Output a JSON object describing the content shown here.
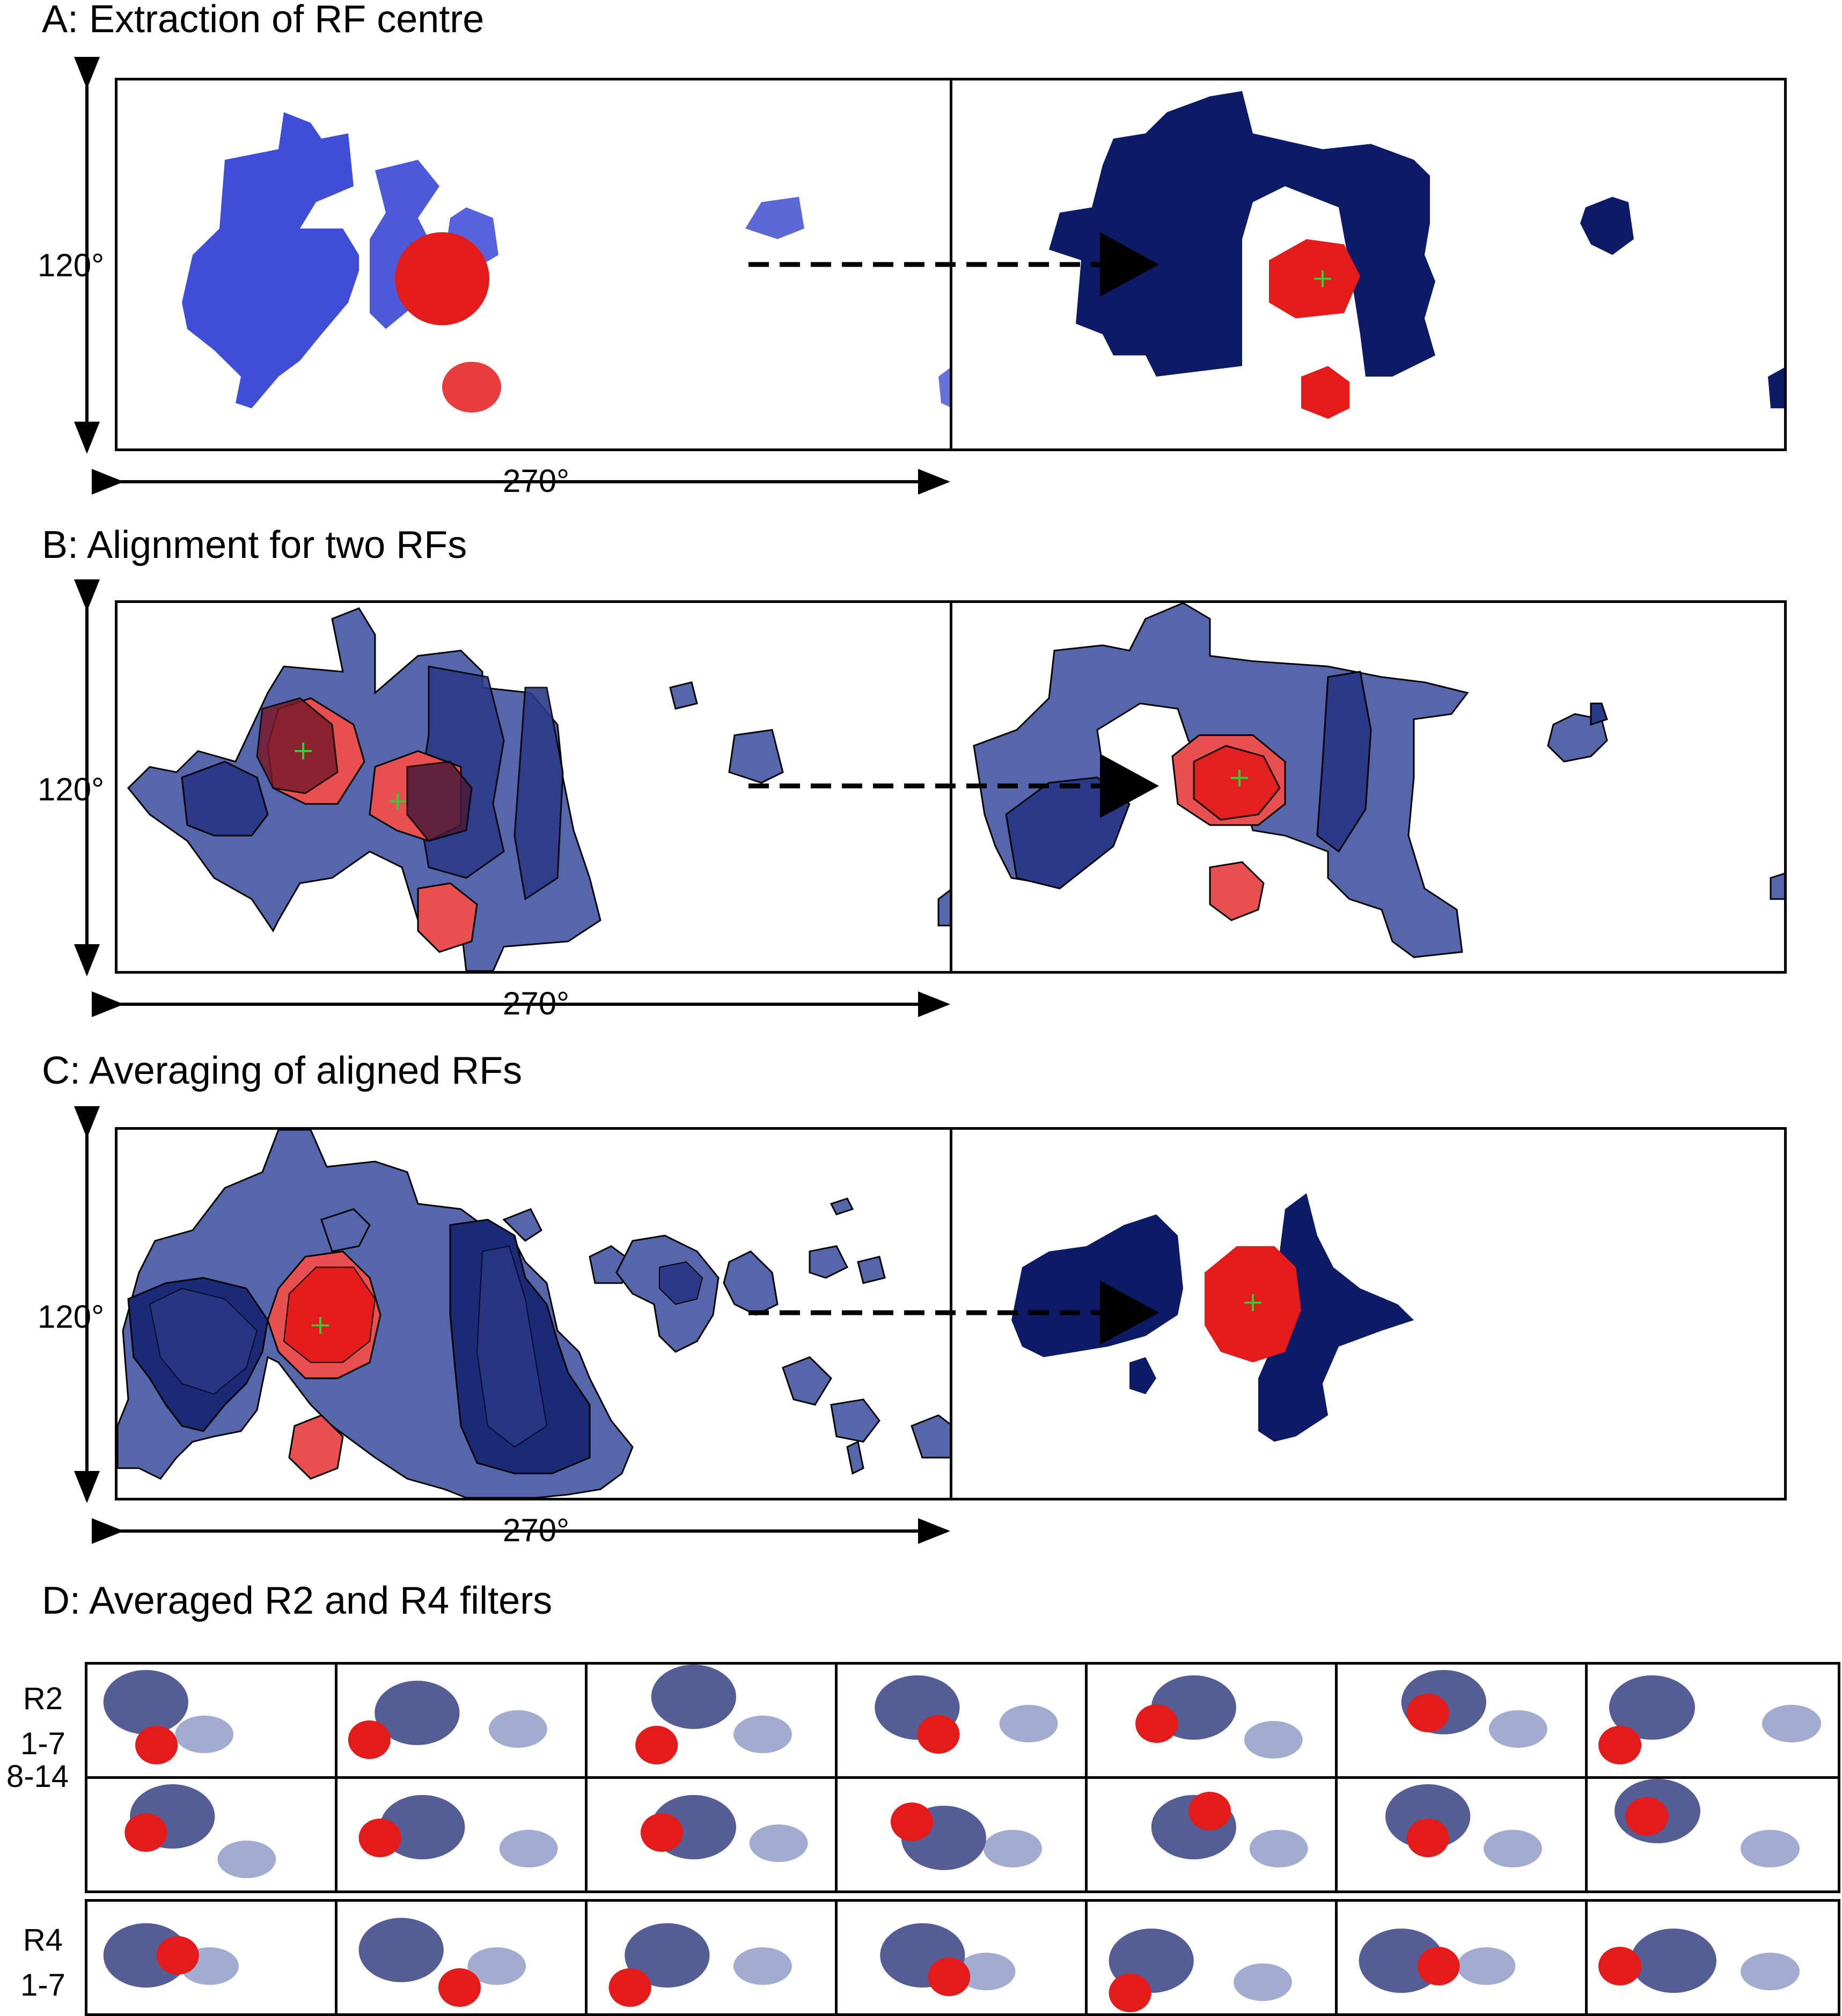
{
  "panels": {
    "a": {
      "title": "A: Extraction of RF centre",
      "y_label": "120°",
      "x_label": "270°"
    },
    "b": {
      "title": "B: Alignment for two RFs",
      "y_label": "120°",
      "x_label": "270°"
    },
    "c": {
      "title": "C: Averaging of aligned RFs",
      "y_label": "120°",
      "x_label": "270°"
    },
    "d": {
      "title": "D: Averaged R2 and R4 filters",
      "rows": [
        {
          "label_line1": "R2",
          "label_line2": "1-7"
        },
        {
          "label_line1": "",
          "label_line2": "8-14"
        },
        {
          "label_line1": "R4",
          "label_line2": "1-7"
        }
      ]
    }
  },
  "colors": {
    "excitatory": "#e31b1b",
    "inhibitory": "#0d1a66",
    "inhibitory_light": "#5566aa",
    "centre_marker": "#33cc33"
  }
}
